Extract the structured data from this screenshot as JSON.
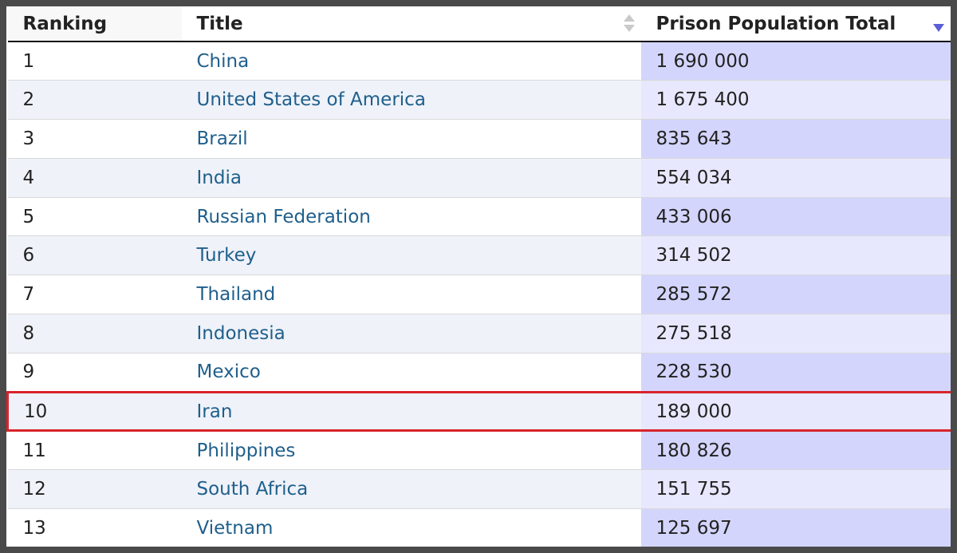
{
  "table": {
    "headers": {
      "ranking": "Ranking",
      "title": "Title",
      "population": "Prison Population Total"
    },
    "highlight_color": "#d9232b",
    "sorted_column": "Prison Population Total",
    "sort_direction": "descending",
    "rows": [
      {
        "rank": "1",
        "title": "China",
        "population": "1 690 000"
      },
      {
        "rank": "2",
        "title": "United States of America",
        "population": "1 675 400"
      },
      {
        "rank": "3",
        "title": "Brazil",
        "population": "835 643"
      },
      {
        "rank": "4",
        "title": "India",
        "population": "554 034"
      },
      {
        "rank": "5",
        "title": "Russian Federation",
        "population": "433 006"
      },
      {
        "rank": "6",
        "title": "Turkey",
        "population": "314 502"
      },
      {
        "rank": "7",
        "title": "Thailand",
        "population": "285 572"
      },
      {
        "rank": "8",
        "title": "Indonesia",
        "population": "275 518"
      },
      {
        "rank": "9",
        "title": "Mexico",
        "population": "228 530"
      },
      {
        "rank": "10",
        "title": "Iran",
        "population": "189 000",
        "highlighted": true
      },
      {
        "rank": "11",
        "title": "Philippines",
        "population": "180 826"
      },
      {
        "rank": "12",
        "title": "South Africa",
        "population": "151 755"
      },
      {
        "rank": "13",
        "title": "Vietnam",
        "population": "125 697"
      }
    ]
  }
}
